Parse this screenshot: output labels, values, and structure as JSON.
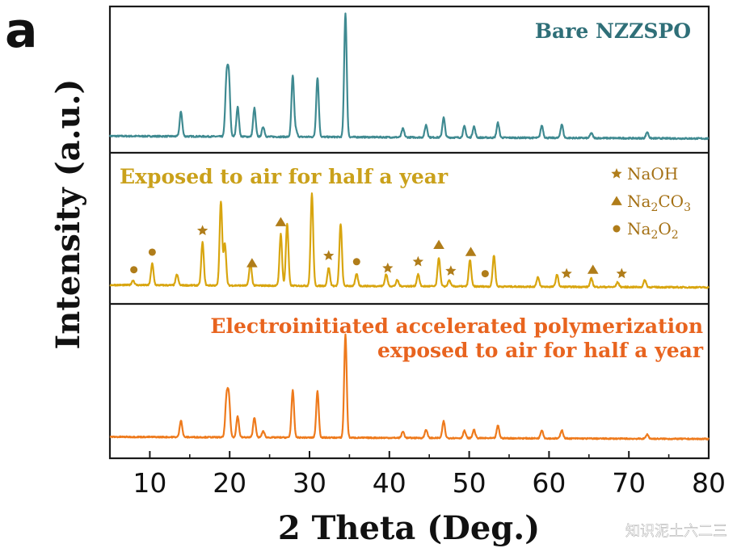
{
  "panel_label": "a",
  "watermark": "知识泥土六二三",
  "colors": {
    "axis": "#1a1a1a",
    "bare": "#3f8a91",
    "aged": "#d8a50f",
    "polymer": "#ee7a1c",
    "bare_label": "#2f6f78",
    "aged_label": "#caa11b",
    "polymer_label": "#e8641f",
    "legend_marker": "#b07d1a",
    "legend_text": "#a47014",
    "watermark": "#ffffff"
  },
  "chart_data": {
    "type": "line",
    "title": "",
    "xlabel": "2 Theta (Deg.)",
    "ylabel": "Intensity (a.u.)",
    "xlim": [
      5,
      80
    ],
    "xticks": [
      10,
      20,
      30,
      40,
      50,
      60,
      70,
      80
    ],
    "series": [
      {
        "name": "Bare NZZSPO",
        "label_lines": [
          "Bare NZZSPO"
        ],
        "color_key": "bare",
        "panel": 0,
        "baseline": 0.05,
        "peaks": [
          {
            "x": 13.9,
            "h": 0.2
          },
          {
            "x": 19.6,
            "h": 0.44
          },
          {
            "x": 19.9,
            "h": 0.46
          },
          {
            "x": 21.0,
            "h": 0.24
          },
          {
            "x": 23.1,
            "h": 0.23
          },
          {
            "x": 24.2,
            "h": 0.08
          },
          {
            "x": 27.9,
            "h": 0.49
          },
          {
            "x": 28.3,
            "h": 0.05
          },
          {
            "x": 31.0,
            "h": 0.48
          },
          {
            "x": 34.5,
            "h": 1.0
          },
          {
            "x": 41.7,
            "h": 0.07
          },
          {
            "x": 44.6,
            "h": 0.1
          },
          {
            "x": 46.8,
            "h": 0.16
          },
          {
            "x": 49.4,
            "h": 0.09
          },
          {
            "x": 50.6,
            "h": 0.09
          },
          {
            "x": 53.6,
            "h": 0.12
          },
          {
            "x": 59.1,
            "h": 0.1
          },
          {
            "x": 61.6,
            "h": 0.11
          },
          {
            "x": 65.3,
            "h": 0.04
          },
          {
            "x": 72.3,
            "h": 0.05
          }
        ]
      },
      {
        "name": "Exposed to air for half a year",
        "label_lines": [
          "Exposed to air for half a year"
        ],
        "color_key": "aged",
        "panel": 1,
        "baseline": 0.05,
        "peaks": [
          {
            "x": 7.9,
            "h": 0.04
          },
          {
            "x": 10.3,
            "h": 0.18
          },
          {
            "x": 13.4,
            "h": 0.09
          },
          {
            "x": 16.6,
            "h": 0.36
          },
          {
            "x": 18.9,
            "h": 0.7
          },
          {
            "x": 19.4,
            "h": 0.35
          },
          {
            "x": 22.6,
            "h": 0.19
          },
          {
            "x": 26.4,
            "h": 0.43
          },
          {
            "x": 27.2,
            "h": 0.52
          },
          {
            "x": 30.3,
            "h": 0.77
          },
          {
            "x": 32.4,
            "h": 0.15
          },
          {
            "x": 33.9,
            "h": 0.52
          },
          {
            "x": 35.9,
            "h": 0.1
          },
          {
            "x": 39.6,
            "h": 0.1
          },
          {
            "x": 41.0,
            "h": 0.05
          },
          {
            "x": 43.6,
            "h": 0.1
          },
          {
            "x": 46.2,
            "h": 0.24
          },
          {
            "x": 47.5,
            "h": 0.05
          },
          {
            "x": 50.1,
            "h": 0.22
          },
          {
            "x": 53.1,
            "h": 0.26
          },
          {
            "x": 58.6,
            "h": 0.08
          },
          {
            "x": 61.0,
            "h": 0.1
          },
          {
            "x": 65.3,
            "h": 0.07
          },
          {
            "x": 68.6,
            "h": 0.04
          },
          {
            "x": 72.0,
            "h": 0.06
          }
        ],
        "markers": [
          {
            "x": 8.0,
            "type": "circle"
          },
          {
            "x": 10.3,
            "type": "circle"
          },
          {
            "x": 16.6,
            "type": "star"
          },
          {
            "x": 22.8,
            "type": "triangle"
          },
          {
            "x": 26.4,
            "type": "triangle"
          },
          {
            "x": 32.4,
            "type": "star"
          },
          {
            "x": 35.9,
            "type": "circle"
          },
          {
            "x": 39.8,
            "type": "star"
          },
          {
            "x": 43.6,
            "type": "star"
          },
          {
            "x": 46.2,
            "type": "triangle"
          },
          {
            "x": 47.7,
            "type": "star"
          },
          {
            "x": 50.2,
            "type": "triangle"
          },
          {
            "x": 52.0,
            "type": "circle"
          },
          {
            "x": 62.2,
            "type": "star"
          },
          {
            "x": 65.5,
            "type": "triangle"
          },
          {
            "x": 69.1,
            "type": "star"
          }
        ]
      },
      {
        "name": "Electroinitiated accelerated polymerization exposed to air for half a year",
        "label_lines": [
          "Electroinitiated accelerated polymerization",
          "exposed to air for half a year"
        ],
        "color_key": "polymer",
        "panel": 2,
        "baseline": 0.05,
        "peaks": [
          {
            "x": 13.9,
            "h": 0.16
          },
          {
            "x": 19.6,
            "h": 0.35
          },
          {
            "x": 19.9,
            "h": 0.37
          },
          {
            "x": 21.0,
            "h": 0.2
          },
          {
            "x": 23.1,
            "h": 0.19
          },
          {
            "x": 24.2,
            "h": 0.06
          },
          {
            "x": 27.9,
            "h": 0.45
          },
          {
            "x": 31.0,
            "h": 0.44
          },
          {
            "x": 34.5,
            "h": 0.98
          },
          {
            "x": 41.7,
            "h": 0.06
          },
          {
            "x": 44.6,
            "h": 0.08
          },
          {
            "x": 46.8,
            "h": 0.16
          },
          {
            "x": 49.4,
            "h": 0.07
          },
          {
            "x": 50.6,
            "h": 0.08
          },
          {
            "x": 53.6,
            "h": 0.12
          },
          {
            "x": 59.1,
            "h": 0.08
          },
          {
            "x": 61.6,
            "h": 0.08
          },
          {
            "x": 72.3,
            "h": 0.04
          }
        ]
      }
    ],
    "legend": {
      "placement": "top-right of middle panel",
      "entries": [
        {
          "symbol": "star",
          "label": "NaOH",
          "sub": []
        },
        {
          "symbol": "triangle",
          "label": "Na2CO3",
          "sub": [
            {
              "t": "Na"
            },
            {
              "t": "2",
              "s": true
            },
            {
              "t": "CO"
            },
            {
              "t": "3",
              "s": true
            }
          ]
        },
        {
          "symbol": "circle",
          "label": "Na2O2",
          "sub": [
            {
              "t": "Na"
            },
            {
              "t": "2",
              "s": true
            },
            {
              "t": "O"
            },
            {
              "t": "2",
              "s": true
            }
          ]
        }
      ]
    }
  }
}
